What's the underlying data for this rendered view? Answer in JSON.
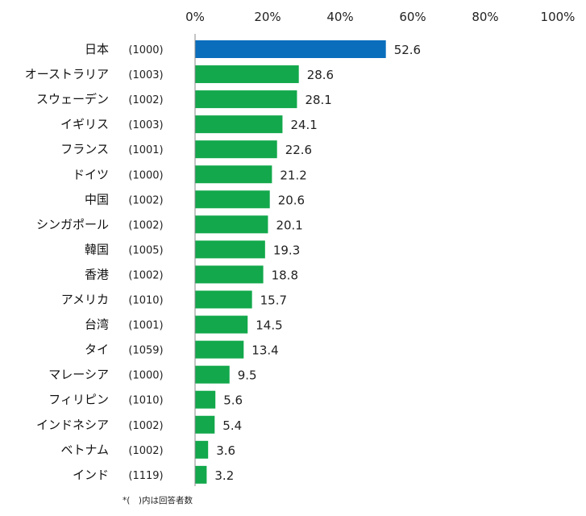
{
  "chart_data": {
    "type": "bar",
    "orientation": "horizontal",
    "title": "",
    "xlabel": "",
    "ylabel": "",
    "xlim": [
      0,
      100
    ],
    "x_ticks": [
      "0%",
      "20%",
      "40%",
      "60%",
      "80%",
      "100%"
    ],
    "x_tick_values": [
      0,
      20,
      40,
      60,
      80,
      100
    ],
    "grid": false,
    "categories": [
      "日本",
      "オーストラリア",
      "スウェーデン",
      "イギリス",
      "フランス",
      "ドイツ",
      "中国",
      "シンガポール",
      "韓国",
      "香港",
      "アメリカ",
      "台湾",
      "タイ",
      "マレーシア",
      "フィリピン",
      "インドネシア",
      "ベトナム",
      "インド"
    ],
    "respondents": [
      "(1000)",
      "(1003)",
      "(1002)",
      "(1003)",
      "(1001)",
      "(1000)",
      "(1002)",
      "(1002)",
      "(1005)",
      "(1002)",
      "(1010)",
      "(1001)",
      "(1059)",
      "(1000)",
      "(1010)",
      "(1002)",
      "(1002)",
      "(1119)"
    ],
    "values": [
      52.6,
      28.6,
      28.1,
      24.1,
      22.6,
      21.2,
      20.6,
      20.1,
      19.3,
      18.8,
      15.7,
      14.5,
      13.4,
      9.5,
      5.6,
      5.4,
      3.6,
      3.2
    ],
    "value_labels": [
      "52.6",
      "28.6",
      "28.1",
      "24.1",
      "22.6",
      "21.2",
      "20.6",
      "20.1",
      "19.3",
      "18.8",
      "15.7",
      "14.5",
      "13.4",
      "9.5",
      "5.6",
      "5.4",
      "3.6",
      "3.2"
    ],
    "highlight_index": 0,
    "colors": {
      "highlight": "#0a6ebd",
      "default": "#12a84b",
      "axis": "#888888"
    },
    "footnote": "*(　)内は回答者数"
  }
}
